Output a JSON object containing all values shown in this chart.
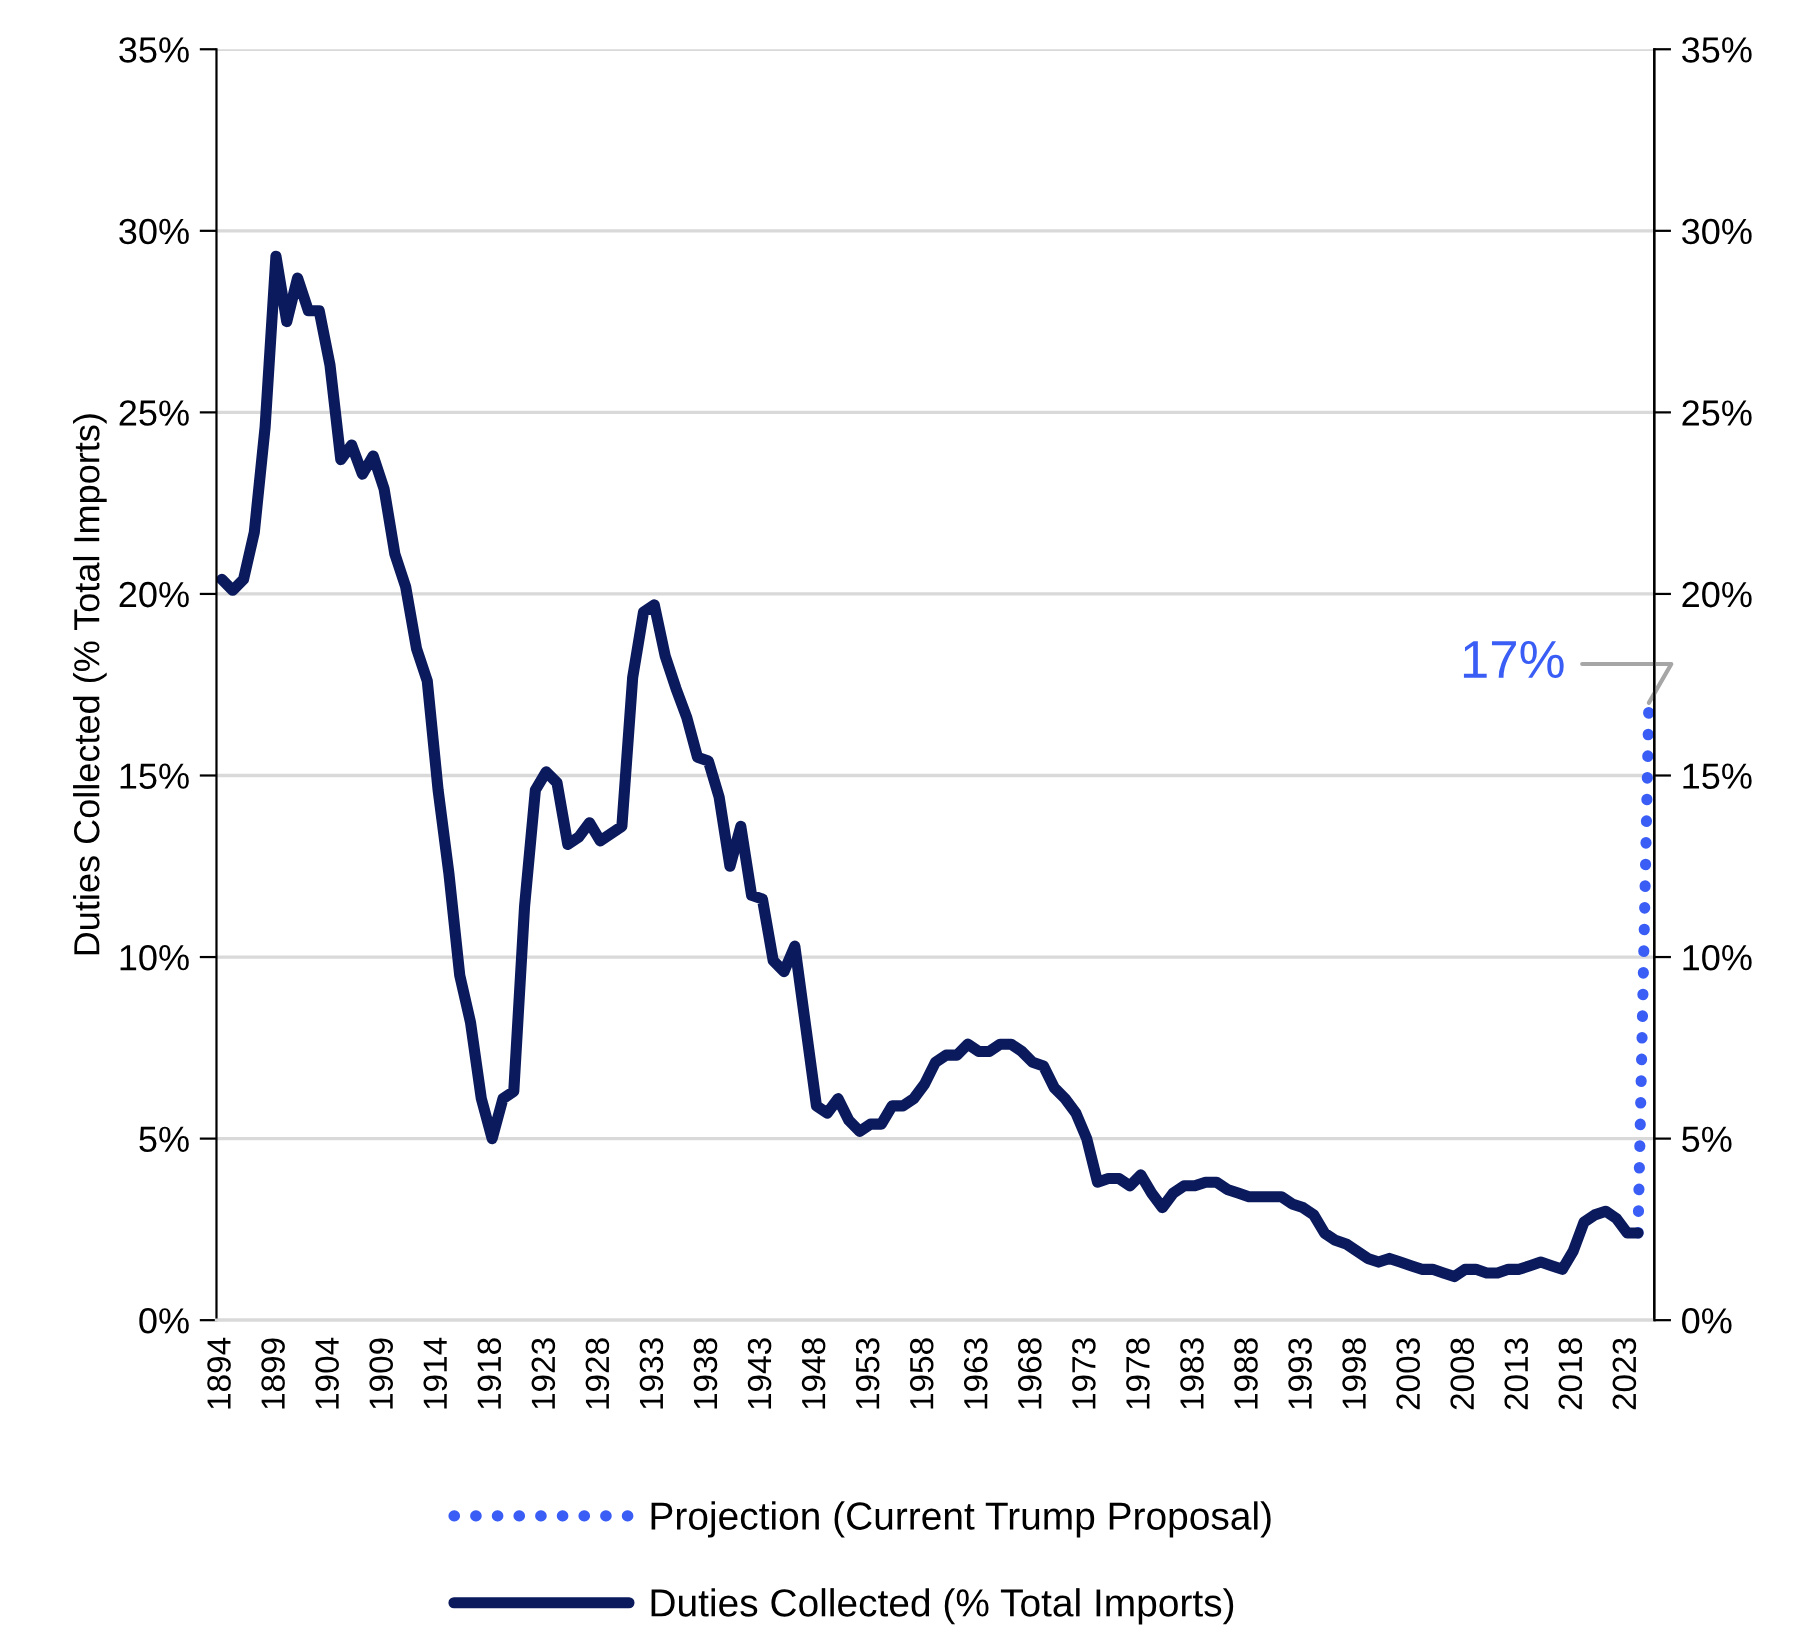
{
  "chart_data": {
    "type": "line",
    "ylabel": "Duties Collected (% Total Imports)",
    "categories": [
      "1894",
      null,
      null,
      null,
      null,
      "1899",
      null,
      null,
      null,
      null,
      "1904",
      null,
      null,
      null,
      null,
      "1909",
      null,
      null,
      null,
      null,
      "1914",
      null,
      null,
      null,
      null,
      "1918",
      null,
      null,
      null,
      null,
      "1923",
      null,
      null,
      null,
      null,
      "1928",
      null,
      null,
      null,
      null,
      "1933",
      null,
      null,
      null,
      null,
      "1938",
      null,
      null,
      null,
      null,
      "1943",
      null,
      null,
      null,
      null,
      "1948",
      null,
      null,
      null,
      null,
      "1953",
      null,
      null,
      null,
      null,
      "1958",
      null,
      null,
      null,
      null,
      "1963",
      null,
      null,
      null,
      null,
      "1968",
      null,
      null,
      null,
      null,
      "1973",
      null,
      null,
      null,
      null,
      "1978",
      null,
      null,
      null,
      null,
      "1983",
      null,
      null,
      null,
      null,
      "1988",
      null,
      null,
      null,
      null,
      "1993",
      null,
      null,
      null,
      null,
      "1998",
      null,
      null,
      null,
      null,
      "2003",
      null,
      null,
      null,
      null,
      "2008",
      null,
      null,
      null,
      null,
      "2013",
      null,
      null,
      null,
      null,
      "2018",
      null,
      null,
      null,
      null,
      "2023",
      null,
      null
    ],
    "series": [
      {
        "name": "Projection (Current Trump Proposal)",
        "color": "#3a5ef5",
        "line_style": "dotted",
        "values": [
          null,
          null,
          null,
          null,
          null,
          null,
          null,
          null,
          null,
          null,
          null,
          null,
          null,
          null,
          null,
          null,
          null,
          null,
          null,
          null,
          null,
          null,
          null,
          null,
          null,
          null,
          null,
          null,
          null,
          null,
          null,
          null,
          null,
          null,
          null,
          null,
          null,
          null,
          null,
          null,
          null,
          null,
          null,
          null,
          null,
          null,
          null,
          null,
          null,
          null,
          null,
          null,
          null,
          null,
          null,
          null,
          null,
          null,
          null,
          null,
          null,
          null,
          null,
          null,
          null,
          null,
          null,
          null,
          null,
          null,
          null,
          null,
          null,
          null,
          null,
          null,
          null,
          null,
          null,
          null,
          null,
          null,
          null,
          null,
          null,
          null,
          null,
          null,
          null,
          null,
          null,
          null,
          null,
          null,
          null,
          null,
          null,
          null,
          null,
          null,
          null,
          null,
          null,
          null,
          null,
          null,
          null,
          null,
          null,
          null,
          null,
          null,
          null,
          null,
          null,
          null,
          null,
          null,
          null,
          null,
          null,
          null,
          null,
          null,
          null,
          null,
          null,
          null,
          null,
          null,
          null,
          2.4,
          17
        ],
        "value_labels": [
          null,
          null,
          null,
          null,
          null,
          null,
          null,
          null,
          null,
          null,
          null,
          null,
          null,
          null,
          null,
          null,
          null,
          null,
          null,
          null,
          null,
          null,
          null,
          null,
          null,
          null,
          null,
          null,
          null,
          null,
          null,
          null,
          null,
          null,
          null,
          null,
          null,
          null,
          null,
          null,
          null,
          null,
          null,
          null,
          null,
          null,
          null,
          null,
          null,
          null,
          null,
          null,
          null,
          null,
          null,
          null,
          null,
          null,
          null,
          null,
          null,
          null,
          null,
          null,
          null,
          null,
          null,
          null,
          null,
          null,
          null,
          null,
          null,
          null,
          null,
          null,
          null,
          null,
          null,
          null,
          null,
          null,
          null,
          null,
          null,
          null,
          null,
          null,
          null,
          null,
          null,
          null,
          null,
          null,
          null,
          null,
          null,
          null,
          null,
          null,
          null,
          null,
          null,
          null,
          null,
          null,
          null,
          null,
          null,
          null,
          null,
          null,
          null,
          null,
          null,
          null,
          null,
          null,
          null,
          null,
          null,
          null,
          null,
          null,
          null,
          null,
          null,
          null,
          null,
          null,
          null,
          null,
          "17%"
        ]
      },
      {
        "name": "Duties Collected (% Total Imports)",
        "color": "#0b1a5c",
        "line_style": "solid",
        "values": [
          20.4,
          20.1,
          20.4,
          21.7,
          24.6,
          29.3,
          27.5,
          28.7,
          27.8,
          27.8,
          26.3,
          23.7,
          24.1,
          23.3,
          23.8,
          22.9,
          21.1,
          20.2,
          18.5,
          17.6,
          14.6,
          12.3,
          9.5,
          8.2,
          6.1,
          5.0,
          6.1,
          6.3,
          11.4,
          14.6,
          15.1,
          14.8,
          13.1,
          13.3,
          13.7,
          13.2,
          13.4,
          13.6,
          17.7,
          19.5,
          19.7,
          18.3,
          17.4,
          16.6,
          15.5,
          15.4,
          14.4,
          12.5,
          13.6,
          11.7,
          11.6,
          9.9,
          9.6,
          10.3,
          8.1,
          5.9,
          5.7,
          6.1,
          5.5,
          5.2,
          5.4,
          5.4,
          5.9,
          5.9,
          6.1,
          6.5,
          7.1,
          7.3,
          7.3,
          7.6,
          7.4,
          7.4,
          7.6,
          7.6,
          7.4,
          7.1,
          7.0,
          6.4,
          6.1,
          5.7,
          5.0,
          3.8,
          3.9,
          3.9,
          3.7,
          4.0,
          3.5,
          3.1,
          3.5,
          3.7,
          3.7,
          3.8,
          3.8,
          3.6,
          3.5,
          3.4,
          3.4,
          3.4,
          3.4,
          3.2,
          3.1,
          2.9,
          2.4,
          2.2,
          2.1,
          1.9,
          1.7,
          1.6,
          1.7,
          1.6,
          1.5,
          1.4,
          1.4,
          1.3,
          1.2,
          1.4,
          1.4,
          1.3,
          1.3,
          1.4,
          1.4,
          1.5,
          1.6,
          1.5,
          1.4,
          1.9,
          2.7,
          2.9,
          3.0,
          2.8,
          2.4,
          2.4,
          null
        ]
      }
    ],
    "ylim": [
      0,
      35
    ],
    "yticks": [
      {
        "value": 0,
        "label": "0%"
      },
      {
        "value": 5,
        "label": "5%"
      },
      {
        "value": 10,
        "label": "10%"
      },
      {
        "value": 15,
        "label": "15%"
      },
      {
        "value": 20,
        "label": "20%"
      },
      {
        "value": 25,
        "label": "25%"
      },
      {
        "value": 30,
        "label": "30%"
      },
      {
        "value": 35,
        "label": "35%"
      }
    ],
    "y2lim": [
      0,
      35
    ],
    "y2ticks": [
      {
        "value": 0,
        "label": "0%"
      },
      {
        "value": 5,
        "label": "5%"
      },
      {
        "value": 10,
        "label": "10%"
      },
      {
        "value": 15,
        "label": "15%"
      },
      {
        "value": 20,
        "label": "20%"
      },
      {
        "value": 25,
        "label": "25%"
      },
      {
        "value": 30,
        "label": "30%"
      },
      {
        "value": 35,
        "label": "35%"
      }
    ],
    "grid": "y",
    "legend": "bottom",
    "marker": "none"
  }
}
